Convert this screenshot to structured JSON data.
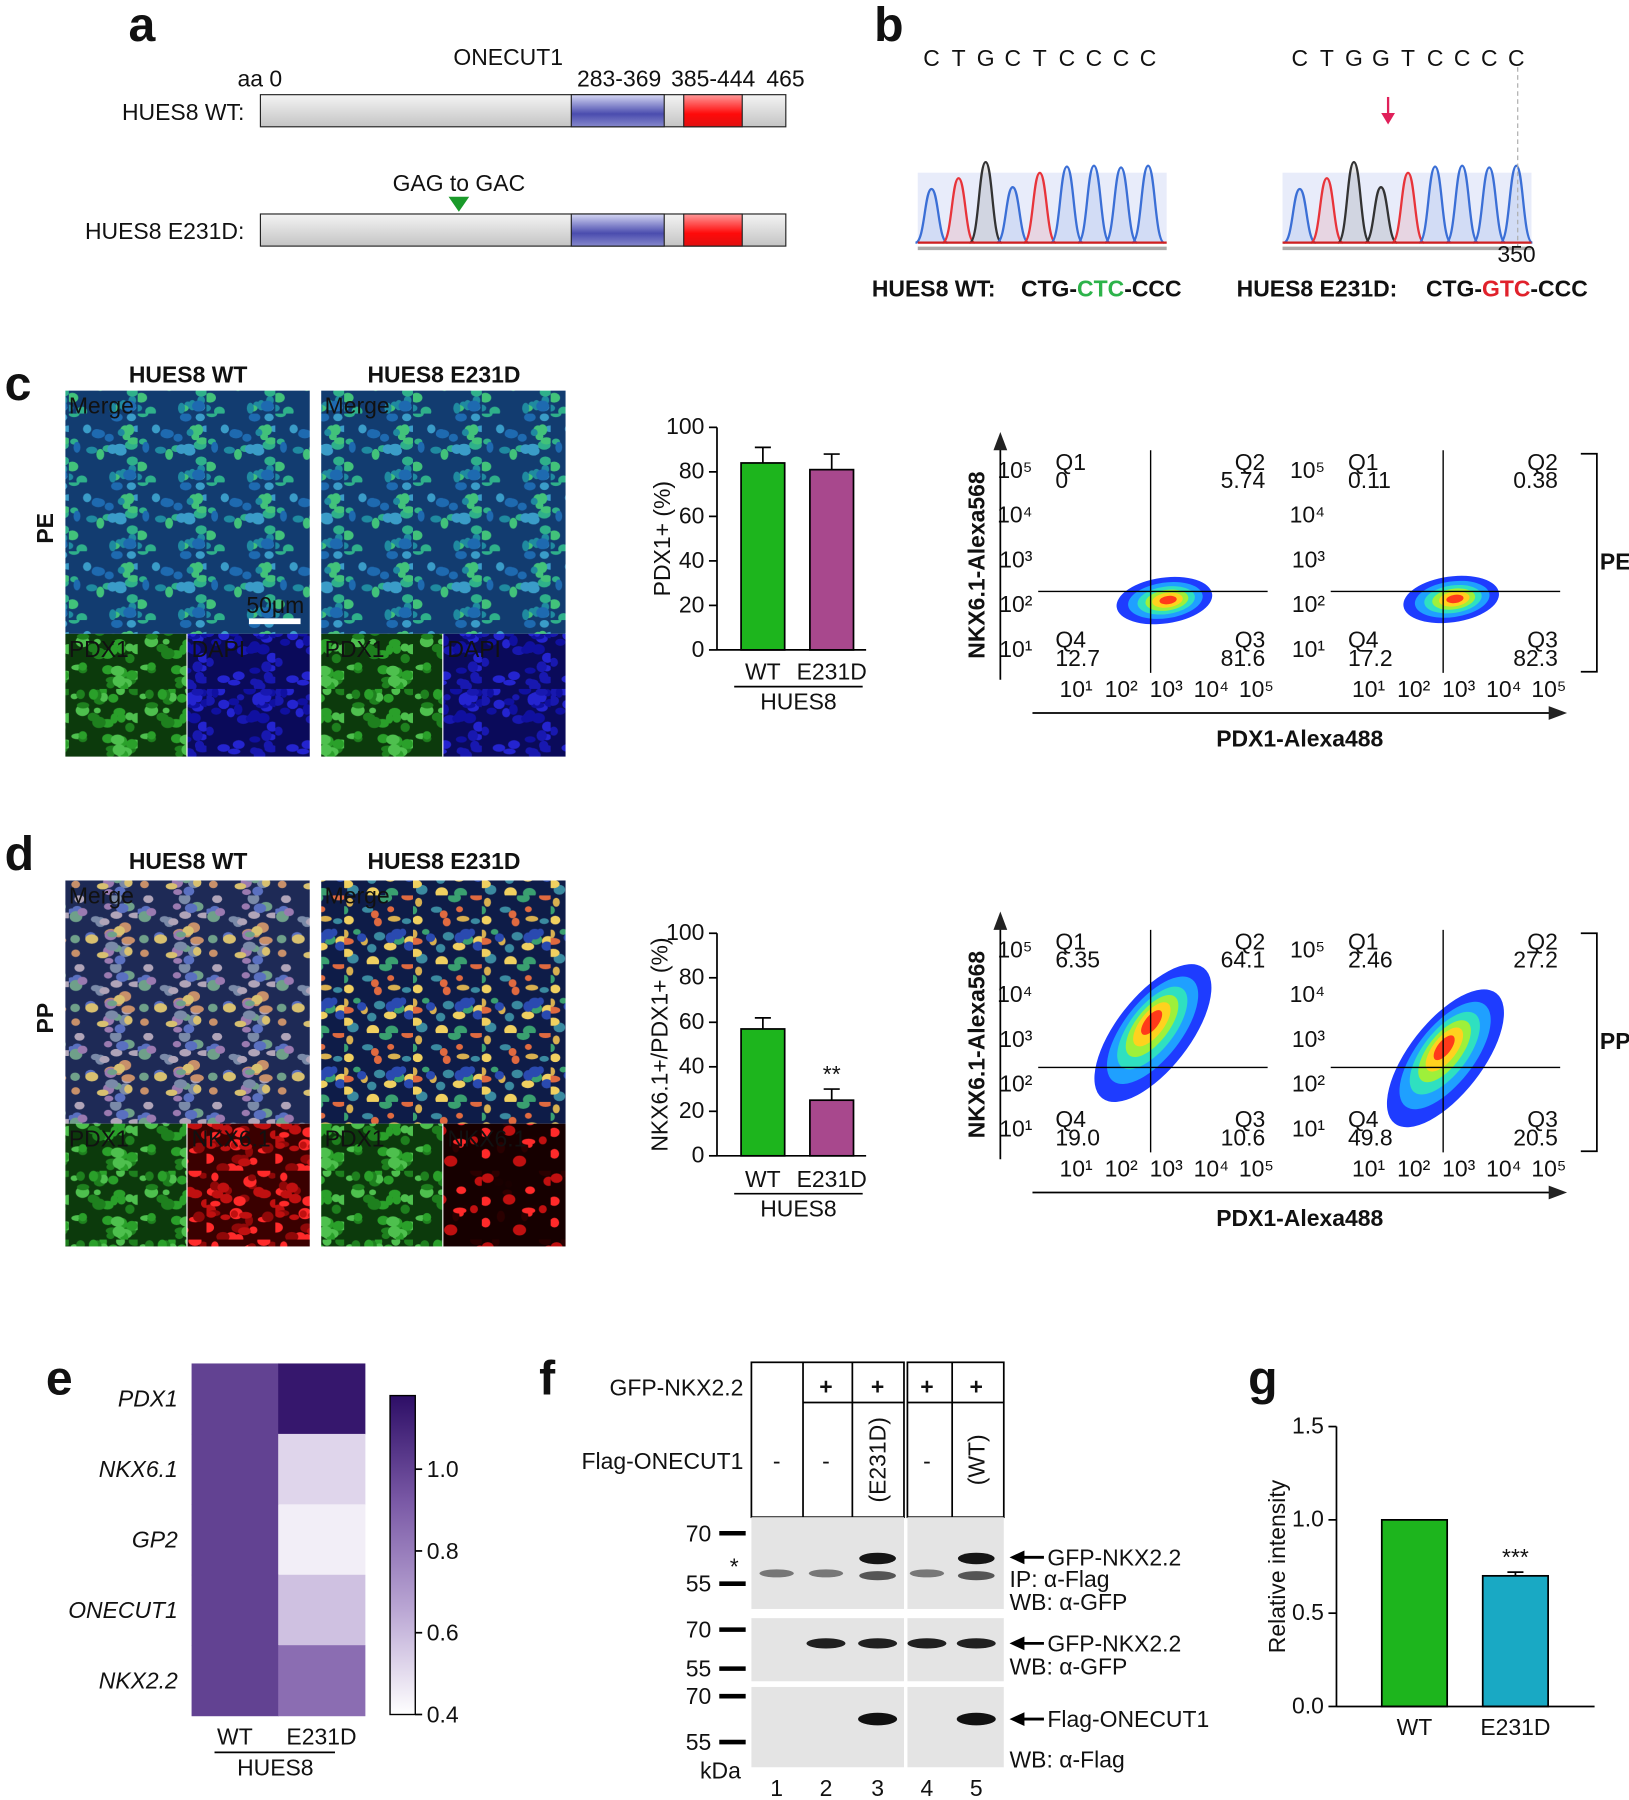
{
  "panel_labels": [
    "a",
    "b",
    "c",
    "d",
    "e",
    "f",
    "g"
  ],
  "panel_a": {
    "protein": "ONECUT1",
    "start": "aa 0",
    "domain1": "283-369",
    "domain2": "385-444",
    "end": "465",
    "rows": [
      "HUES8 WT:",
      "HUES8 E231D:"
    ],
    "mutation": "GAG to GAC"
  },
  "panel_b": {
    "traces": [
      [
        "C",
        "T",
        "G",
        "C",
        "T",
        "C",
        "C",
        "C",
        "C"
      ],
      [
        "C",
        "T",
        "G",
        "G",
        "T",
        "C",
        "C",
        "C",
        "C"
      ]
    ],
    "axis_label": "350",
    "base_colors": {
      "C": "#3b6fd6",
      "T": "#e8343a",
      "G": "#333333"
    },
    "genotypes": [
      {
        "name": "HUES8 WT:",
        "codon": [
          "CTG-",
          "CTC",
          "-CCC"
        ],
        "color": "#2db34a"
      },
      {
        "name": "HUES8 E231D:",
        "codon": [
          "CTG-",
          "GTC",
          "-CCC"
        ],
        "color": "#e0212b"
      }
    ]
  },
  "images": {
    "columns": [
      "HUES8 WT",
      "HUES8 E231D"
    ],
    "rows": [
      "PE",
      "PP"
    ],
    "merge": "Merge",
    "scale": "50μm",
    "pe_channels": [
      "PDX1",
      "DAPI"
    ],
    "pp_channels": [
      "PDX1",
      "NKX6.1"
    ]
  },
  "flow": {
    "y_label": "NKX6.1-Alexa568",
    "x_label": "PDX1-Alexa488",
    "ticks": [
      "10¹",
      "10²",
      "10³",
      "10⁴",
      "10⁵"
    ],
    "quadrants": [
      "Q1",
      "Q2",
      "Q4",
      "Q3"
    ],
    "plots": [
      {
        "stage": "PE",
        "values": [
          [
            "0",
            "5.74",
            "12.7",
            "81.6"
          ],
          [
            "0.11",
            "0.38",
            "17.2",
            "82.3"
          ]
        ]
      },
      {
        "stage": "PP",
        "values": [
          [
            "6.35",
            "64.1",
            "19.0",
            "10.6"
          ],
          [
            "2.46",
            "27.2",
            "49.8",
            "20.5"
          ]
        ]
      }
    ]
  },
  "chart_data": [
    {
      "type": "bar",
      "y_label": "PDX1+ (%)",
      "categories": [
        "WT",
        "E231D"
      ],
      "group": "HUES8",
      "values": [
        84,
        81
      ],
      "errors": [
        7,
        7
      ],
      "colors": [
        "#1db51d",
        "#a8488d"
      ],
      "ylim": [
        0,
        100
      ],
      "yticks": [
        0,
        20,
        40,
        60,
        80,
        100
      ]
    },
    {
      "type": "bar",
      "y_label": "NKX6.1+/PDX1+ (%)",
      "categories": [
        "WT",
        "E231D"
      ],
      "group": "HUES8",
      "values": [
        57,
        25
      ],
      "errors": [
        5,
        5
      ],
      "colors": [
        "#1db51d",
        "#a8488d"
      ],
      "value_annotations": [
        null,
        "**"
      ],
      "ylim": [
        0,
        100
      ],
      "yticks": [
        0,
        20,
        40,
        60,
        80,
        100
      ]
    },
    {
      "type": "heatmap",
      "rows": [
        "PDX1",
        "NKX6.1",
        "GP2",
        "ONECUT1",
        "NKX2.2"
      ],
      "categories": [
        "WT",
        "E231D"
      ],
      "group": "HUES8",
      "values": [
        [
          1,
          1.15
        ],
        [
          1,
          0.52
        ],
        [
          1,
          0.45
        ],
        [
          1,
          0.58
        ],
        [
          1,
          0.85
        ]
      ],
      "clim": [
        0.4,
        1.18
      ],
      "cticks": [
        0.4,
        0.6,
        0.8,
        {
          "value": 1,
          "label": "1.0"
        }
      ],
      "colormap": [
        "#ffffff",
        "#b9a5d3",
        "#7a59a6",
        "#2d0e66"
      ]
    },
    {
      "type": "bar",
      "y_label": "Relative intensity",
      "categories": [
        "WT",
        "E231D"
      ],
      "values": [
        1,
        0.7
      ],
      "errors": [
        null,
        0.02
      ],
      "colors": [
        "#1db51d",
        "#19a9c4"
      ],
      "value_annotations": [
        null,
        "***"
      ],
      "ylim": [
        0,
        1.5
      ],
      "yticks": [
        {
          "value": 0,
          "label": "0.0"
        },
        {
          "value": 0.5,
          "label": "0.5"
        },
        {
          "value": 1,
          "label": "1.0"
        },
        {
          "value": 1.5,
          "label": "1.5"
        }
      ]
    }
  ],
  "panel_f": {
    "rows": [
      "GFP-NKX2.2",
      "Flag-ONECUT1"
    ],
    "gfp": [
      null,
      "+",
      "+",
      "+",
      "+"
    ],
    "flag": [
      "-",
      "-",
      "(E231D)",
      "-",
      "(WT)"
    ],
    "markers": [
      [
        "70",
        "55"
      ],
      [
        "70",
        "55"
      ],
      [
        "70",
        "55"
      ]
    ],
    "asterisk": "*",
    "kda": "kDa",
    "lanes": [
      "1",
      "2",
      "3",
      "4",
      "5"
    ],
    "blots": [
      {
        "band": "GFP-NKX2.2",
        "notes": [
          "IP: α-Flag",
          "WB: α-GFP"
        ]
      },
      {
        "band": "GFP-NKX2.2",
        "notes": [
          "WB: α-GFP"
        ]
      },
      {
        "band": "Flag-ONECUT1",
        "notes": [
          "WB: α-Flag"
        ]
      }
    ]
  }
}
